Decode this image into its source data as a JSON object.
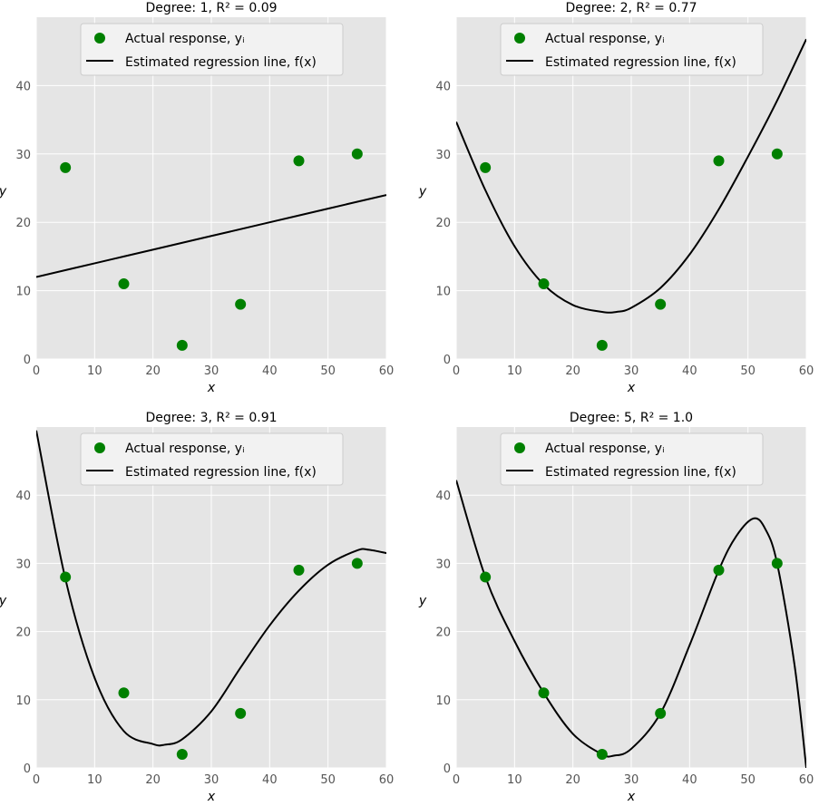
{
  "colors": {
    "points": "#008000",
    "line": "#000000",
    "panel_bg": "#e5e5e5",
    "grid": "#ffffff"
  },
  "chart_data": [
    {
      "type": "scatter",
      "title": "Degree: 1, R² = 0.09",
      "degree": 1,
      "xlabel": "x",
      "ylabel": "y",
      "xlim": [
        0,
        60
      ],
      "ylim": [
        0,
        50
      ],
      "xticks": [
        0,
        10,
        20,
        30,
        40,
        50,
        60
      ],
      "yticks": [
        0,
        10,
        20,
        30,
        40
      ],
      "grid": true,
      "legend_position": "top-center",
      "series": [
        {
          "name": "Actual response, yᵢ",
          "kind": "scatter",
          "x": [
            5,
            15,
            25,
            35,
            45,
            55
          ],
          "y": [
            28,
            11,
            2,
            8,
            29,
            30
          ]
        },
        {
          "name": "Estimated regression line, f(x)",
          "kind": "line",
          "x": [
            0,
            10,
            20,
            30,
            40,
            50,
            60
          ],
          "y": [
            12,
            14,
            16,
            18,
            20,
            22,
            24
          ]
        }
      ]
    },
    {
      "type": "scatter",
      "title": "Degree: 2, R² = 0.77",
      "degree": 2,
      "xlabel": "x",
      "ylabel": "y",
      "xlim": [
        0,
        60
      ],
      "ylim": [
        0,
        50
      ],
      "xticks": [
        0,
        10,
        20,
        30,
        40,
        50,
        60
      ],
      "yticks": [
        0,
        10,
        20,
        30,
        40
      ],
      "grid": true,
      "legend_position": "top-center",
      "series": [
        {
          "name": "Actual response, yᵢ",
          "kind": "scatter",
          "x": [
            5,
            15,
            25,
            35,
            45,
            55
          ],
          "y": [
            28,
            11,
            2,
            8,
            29,
            30
          ]
        },
        {
          "name": "Estimated regression line, f(x)",
          "kind": "line",
          "x": [
            0,
            5,
            10,
            15,
            20,
            25,
            27.5,
            30,
            35,
            40,
            45,
            50,
            55,
            60
          ],
          "y": [
            34.7,
            24.7,
            16.5,
            10.9,
            7.9,
            6.9,
            6.9,
            7.5,
            10.4,
            15.3,
            21.9,
            29.6,
            37.8,
            46.8
          ]
        }
      ]
    },
    {
      "type": "scatter",
      "title": "Degree: 3, R² = 0.91",
      "degree": 3,
      "xlabel": "x",
      "ylabel": "y",
      "xlim": [
        0,
        60
      ],
      "ylim": [
        0,
        50
      ],
      "xticks": [
        0,
        10,
        20,
        30,
        40,
        50,
        60
      ],
      "yticks": [
        0,
        10,
        20,
        30,
        40
      ],
      "grid": true,
      "legend_position": "top-center",
      "series": [
        {
          "name": "Actual response, yᵢ",
          "kind": "scatter",
          "x": [
            5,
            15,
            25,
            35,
            45,
            55
          ],
          "y": [
            28,
            11,
            2,
            8,
            29,
            30
          ]
        },
        {
          "name": "Estimated regression line, f(x)",
          "kind": "line",
          "x": [
            0,
            5,
            10,
            15,
            20,
            22,
            25,
            30,
            35,
            40,
            45,
            50,
            55,
            57,
            60
          ],
          "y": [
            49.5,
            27.7,
            13.2,
            5.4,
            3.5,
            3.4,
            4.2,
            8.3,
            14.7,
            20.9,
            26.0,
            29.8,
            31.9,
            32.0,
            31.5
          ]
        }
      ]
    },
    {
      "type": "scatter",
      "title": "Degree: 5, R² = 1.0",
      "degree": 5,
      "xlabel": "x",
      "ylabel": "y",
      "xlim": [
        0,
        60
      ],
      "ylim": [
        0,
        50
      ],
      "xticks": [
        0,
        10,
        20,
        30,
        40,
        50,
        60
      ],
      "yticks": [
        0,
        10,
        20,
        30,
        40
      ],
      "grid": true,
      "legend_position": "top-center",
      "series": [
        {
          "name": "Actual response, yᵢ",
          "kind": "scatter",
          "x": [
            5,
            15,
            25,
            35,
            45,
            55
          ],
          "y": [
            28,
            11,
            2,
            8,
            29,
            30
          ]
        },
        {
          "name": "Estimated regression line, f(x)",
          "kind": "line",
          "x": [
            0,
            5,
            10,
            15,
            20,
            25,
            27,
            30,
            35,
            40,
            45,
            48,
            51,
            53,
            55,
            58,
            60
          ],
          "y": [
            42.2,
            28.0,
            18.6,
            11.0,
            5.0,
            2.0,
            1.8,
            2.8,
            8.0,
            18.0,
            29.0,
            34.0,
            36.6,
            35.0,
            30.0,
            15.0,
            0.0
          ]
        }
      ]
    }
  ]
}
